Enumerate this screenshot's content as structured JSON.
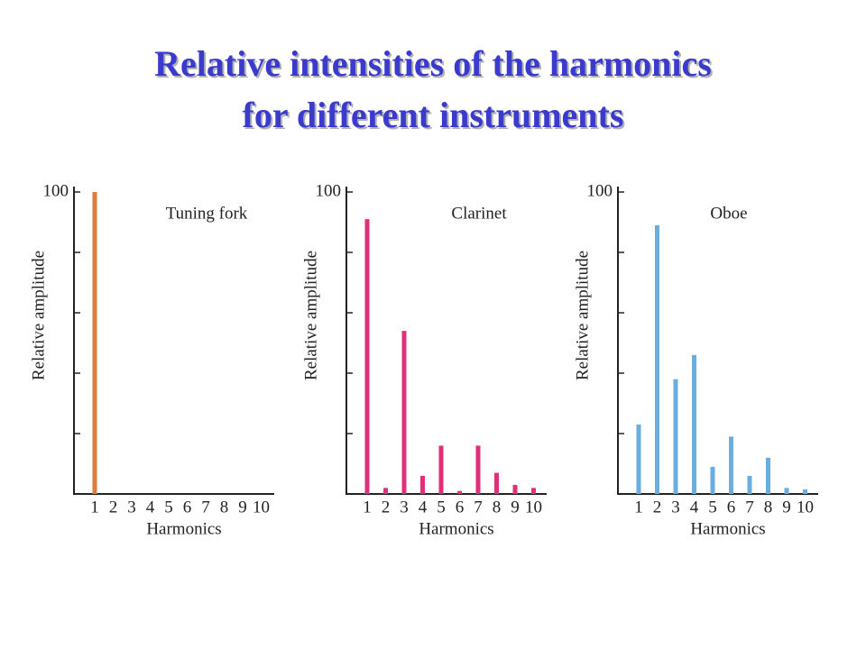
{
  "title_lines": [
    "Relative intensities of the harmonics",
    "for different instruments"
  ],
  "chart_data": [
    {
      "type": "bar",
      "title": "Tuning fork",
      "xlabel": "Harmonics",
      "ylabel": "Relative amplitude",
      "categories": [
        "1",
        "2",
        "3",
        "4",
        "5",
        "6",
        "7",
        "8",
        "9",
        "10"
      ],
      "values": [
        100,
        0,
        0,
        0,
        0,
        0,
        0,
        0,
        0,
        0
      ],
      "color": "#e07b39",
      "ylim": [
        0,
        100
      ],
      "yticks": [
        100
      ],
      "unlabeled_yticks": [
        20,
        40,
        60,
        80
      ]
    },
    {
      "type": "bar",
      "title": "Clarinet",
      "xlabel": "Harmonics",
      "ylabel": "Relative amplitude",
      "categories": [
        "1",
        "2",
        "3",
        "4",
        "5",
        "6",
        "7",
        "8",
        "9",
        "10"
      ],
      "values": [
        91,
        2,
        54,
        6,
        16,
        1,
        16,
        7,
        3,
        2
      ],
      "color": "#e0307a",
      "ylim": [
        0,
        100
      ],
      "yticks": [
        100
      ],
      "unlabeled_yticks": [
        20,
        40,
        60,
        80
      ]
    },
    {
      "type": "bar",
      "title": "Oboe",
      "xlabel": "Harmonics",
      "ylabel": "Relative amplitude",
      "categories": [
        "1",
        "2",
        "3",
        "4",
        "5",
        "6",
        "7",
        "8",
        "9",
        "10"
      ],
      "values": [
        23,
        89,
        38,
        46,
        9,
        19,
        6,
        12,
        2,
        1.5
      ],
      "color": "#6aaee0",
      "ylim": [
        0,
        100
      ],
      "yticks": [
        100
      ],
      "unlabeled_yticks": [
        20,
        40,
        60,
        80
      ]
    }
  ]
}
